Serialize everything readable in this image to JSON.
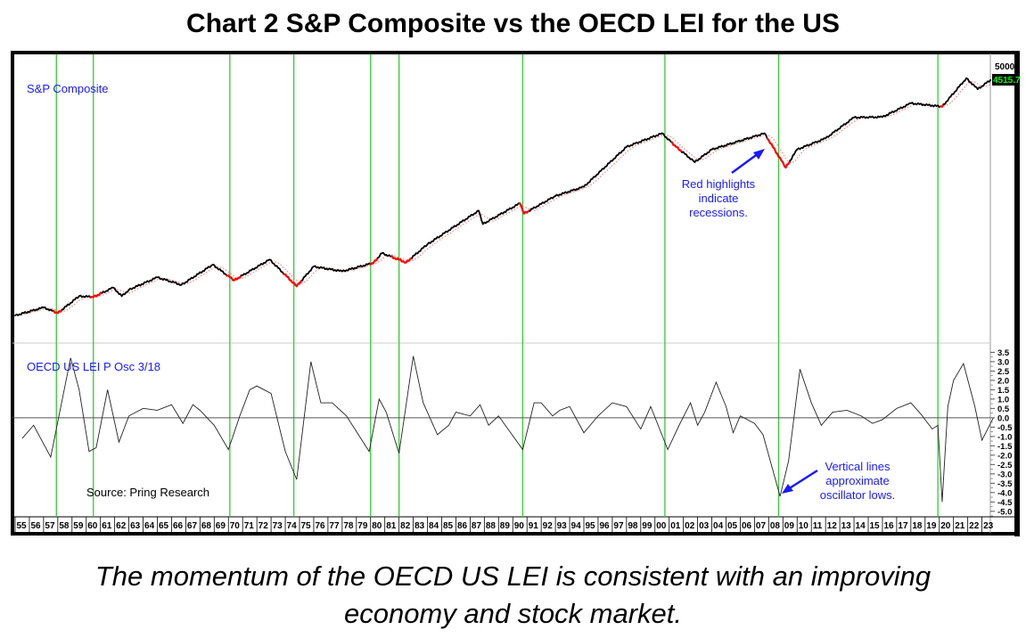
{
  "title": "Chart 2 S&P Composite vs the OECD LEI for the US",
  "caption_line1": "The momentum of the OECD US LEI is consistent with an improving",
  "caption_line2": "economy and stock market.",
  "chart_data": [
    {
      "type": "line",
      "panel": "upper",
      "label": "S&P Composite",
      "scale": "log",
      "ylim": [
        23,
        7700
      ],
      "y_tick_label": "5000",
      "last_value_label": "4515.7",
      "colors": {
        "price": "#000000",
        "recession": "#ff0000",
        "moving_average": "#ff8080",
        "label": "#1a1aff",
        "last_value_bg": "#000000",
        "last_value_text": "#00ff00"
      },
      "x": [
        1955.0,
        1957.0,
        1958.0,
        1959.5,
        1960.5,
        1961.9,
        1962.5,
        1963.0,
        1965.0,
        1966.7,
        1968.9,
        1970.4,
        1972.9,
        1974.8,
        1976.0,
        1978.0,
        1980.2,
        1980.8,
        1982.5,
        1984.0,
        1987.6,
        1987.9,
        1990.5,
        1990.8,
        1993.0,
        1995.0,
        1998.0,
        2000.5,
        2001.5,
        2002.8,
        2004.0,
        2007.7,
        2009.2,
        2010.0,
        2012.0,
        2014.0,
        2016.0,
        2018.0,
        2020.2,
        2021.9,
        2022.7,
        2023.6
      ],
      "values": [
        40,
        47,
        42,
        59,
        58,
        70,
        59,
        67,
        86,
        74,
        111,
        81,
        123,
        72,
        107,
        97,
        115,
        140,
        116,
        167,
        328,
        251,
        380,
        310,
        441,
        530,
        1180,
        1550,
        1180,
        870,
        1120,
        1550,
        780,
        1120,
        1400,
        2130,
        2150,
        2835,
        2650,
        4680,
        3760,
        4515.7
      ],
      "recessions": [
        [
          1957.7,
          1958.3
        ],
        [
          1960.3,
          1961.1
        ],
        [
          1969.9,
          1970.9
        ],
        [
          1973.9,
          1975.2
        ],
        [
          1980.0,
          1980.5
        ],
        [
          1981.5,
          1982.9
        ],
        [
          1990.5,
          1991.2
        ],
        [
          2001.2,
          2001.9
        ],
        [
          2007.9,
          2009.5
        ],
        [
          2020.1,
          2020.3
        ]
      ]
    },
    {
      "type": "line",
      "panel": "lower",
      "label": "OECD US LEI P Osc 3/18",
      "ylim": [
        -5.2,
        3.9
      ],
      "y_ticks": [
        "3.5",
        "3.0",
        "2.5",
        "2.0",
        "1.5",
        "1.0",
        "0.5",
        "0.0",
        "-0.5",
        "-1.0",
        "-1.5",
        "-2.0",
        "-2.5",
        "-3.0",
        "-3.5",
        "-4.0",
        "-4.5",
        "-5.0"
      ],
      "reference_line": 0,
      "x": [
        1955.5,
        1956.3,
        1957.5,
        1958.9,
        1959.5,
        1960.2,
        1960.7,
        1961.5,
        1962.3,
        1963.0,
        1964.0,
        1965.0,
        1966.0,
        1966.8,
        1967.5,
        1968.0,
        1969.0,
        1970.0,
        1970.8,
        1971.5,
        1972.0,
        1973.0,
        1974.0,
        1974.8,
        1975.8,
        1976.5,
        1977.3,
        1978.3,
        1979.9,
        1980.6,
        1981.1,
        1982.0,
        1983.0,
        1983.7,
        1984.7,
        1985.5,
        1986.0,
        1987.0,
        1987.7,
        1988.3,
        1989.0,
        1990.7,
        1991.5,
        1992.0,
        1992.8,
        1993.3,
        1994.0,
        1995.0,
        1996.0,
        1997.0,
        1998.0,
        1999.0,
        1999.7,
        2000.9,
        2001.7,
        2002.5,
        2003.0,
        2003.5,
        2004.3,
        2005.0,
        2005.5,
        2006.0,
        2007.0,
        2007.6,
        2008.8,
        2009.4,
        2010.2,
        2011.0,
        2011.7,
        2012.5,
        2013.5,
        2014.5,
        2015.3,
        2016.0,
        2017.0,
        2018.0,
        2018.7,
        2019.5,
        2019.9,
        2020.2,
        2020.6,
        2021.0,
        2021.7,
        2022.5,
        2023.0,
        2023.6,
        2023.8
      ],
      "values": [
        -1.1,
        -0.4,
        -2.1,
        3.2,
        1.5,
        -1.8,
        -1.6,
        1.5,
        -1.3,
        0.1,
        0.5,
        0.4,
        0.7,
        -0.3,
        0.7,
        0.4,
        -0.4,
        -1.7,
        0.1,
        1.5,
        1.7,
        1.3,
        -1.8,
        -3.3,
        3.0,
        0.8,
        0.8,
        0.1,
        -1.8,
        1.0,
        0.3,
        -1.9,
        3.3,
        0.8,
        -0.9,
        -0.4,
        0.3,
        0.1,
        0.7,
        -0.4,
        0.1,
        -1.7,
        0.8,
        0.8,
        0.1,
        0.4,
        0.6,
        -0.8,
        0.1,
        0.8,
        0.6,
        -0.6,
        0.6,
        -1.7,
        -0.4,
        0.8,
        -0.4,
        0.3,
        1.9,
        0.6,
        -0.8,
        0.1,
        -0.3,
        -0.9,
        -4.2,
        -2.3,
        2.6,
        0.8,
        -0.4,
        0.3,
        0.4,
        0.1,
        -0.3,
        -0.1,
        0.5,
        0.8,
        0.2,
        -0.6,
        -0.4,
        -4.5,
        0.6,
        2.0,
        2.9,
        0.6,
        -1.2,
        -0.3,
        0.0
      ]
    }
  ],
  "x_axis": {
    "tick_labels": [
      "55",
      "56",
      "57",
      "58",
      "59",
      "60",
      "61",
      "62",
      "63",
      "64",
      "65",
      "66",
      "67",
      "68",
      "69",
      "70",
      "71",
      "72",
      "73",
      "74",
      "75",
      "76",
      "77",
      "78",
      "79",
      "80",
      "81",
      "82",
      "83",
      "84",
      "85",
      "86",
      "87",
      "88",
      "89",
      "90",
      "91",
      "92",
      "93",
      "94",
      "95",
      "96",
      "97",
      "98",
      "99",
      "00",
      "01",
      "02",
      "03",
      "04",
      "05",
      "06",
      "07",
      "08",
      "09",
      "10",
      "11",
      "12",
      "13",
      "14",
      "15",
      "16",
      "17",
      "18",
      "19",
      "20",
      "21",
      "22",
      "23"
    ],
    "range": [
      1955,
      2024
    ]
  },
  "vertical_lines": {
    "color": "#33cc33",
    "years": [
      1957.9,
      1960.5,
      1970.1,
      1974.6,
      1980.0,
      1982.0,
      1990.7,
      2000.7,
      2008.7,
      2019.9
    ]
  },
  "annotations": {
    "recession_note": [
      "Red highlights",
      "indicate",
      "recessions."
    ],
    "lows_note": [
      "Vertical lines",
      "approximate",
      "oscillator lows."
    ],
    "source": "Source: Pring Research",
    "color": "#1a1aff"
  }
}
